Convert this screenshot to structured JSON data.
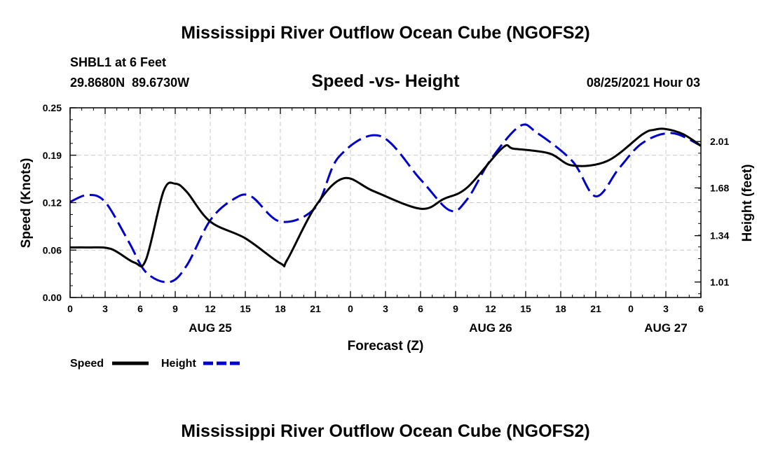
{
  "chart_data": {
    "type": "line",
    "title": "Mississippi River Outflow Ocean Cube (NGOFS2)",
    "footer_title": "Mississippi River Outflow Ocean Cube (NGOFS2)",
    "subtitle": "Speed -vs- Height",
    "station": "SHBL1 at 6 Feet",
    "coords": "29.8680N  89.6730W",
    "datetime": "08/25/2021 Hour 03",
    "xlabel": "Forecast (Z)",
    "ylabel_left": "Speed (Knots)",
    "ylabel_right": "Height (feet)",
    "x_ticks": [
      "0",
      "3",
      "6",
      "9",
      "12",
      "15",
      "18",
      "21",
      "0",
      "3",
      "6",
      "9",
      "12",
      "15",
      "18",
      "21",
      "0",
      "3",
      "6"
    ],
    "date_labels": [
      "AUG 25",
      "AUG 26",
      "AUG 27"
    ],
    "y_left_ticks": [
      "0.00",
      "0.06",
      "0.12",
      "0.19",
      "0.25"
    ],
    "y_left_range": [
      0,
      0.25
    ],
    "y_right_ticks": [
      "1.01",
      "1.34",
      "1.68",
      "2.01"
    ],
    "y_right_range": [
      0.9,
      2.25
    ],
    "x_range_hours": [
      0,
      54
    ],
    "legend": {
      "speed": "Speed",
      "height": "Height"
    },
    "colors": {
      "speed": "#000000",
      "height": "#0000cc",
      "grid": "#c8c8c8"
    },
    "series": [
      {
        "name": "Speed",
        "axis": "left",
        "x": [
          0,
          1.5,
          3.5,
          5.5,
          6.5,
          8,
          9,
          10,
          12,
          15,
          18,
          18.6,
          21,
          23.4,
          26,
          30,
          32,
          34,
          37,
          38,
          41,
          43,
          46,
          49,
          50,
          51,
          52.5,
          54
        ],
        "values": [
          0.066,
          0.066,
          0.064,
          0.046,
          0.05,
          0.14,
          0.15,
          0.139,
          0.1,
          0.078,
          0.045,
          0.05,
          0.12,
          0.157,
          0.14,
          0.117,
          0.13,
          0.145,
          0.197,
          0.196,
          0.19,
          0.174,
          0.18,
          0.215,
          0.221,
          0.222,
          0.215,
          0.2
        ]
      },
      {
        "name": "Height",
        "axis": "right",
        "x": [
          0,
          1.5,
          3,
          5,
          6.5,
          8.5,
          10,
          12,
          14,
          15.5,
          18,
          21,
          23,
          26.5,
          30,
          32.5,
          34,
          36,
          38.5,
          40,
          43,
          45,
          47,
          49,
          51.5,
          54
        ],
        "values": [
          1.58,
          1.63,
          1.58,
          1.3,
          1.08,
          1.01,
          1.13,
          1.45,
          1.6,
          1.62,
          1.44,
          1.54,
          1.9,
          2.05,
          1.74,
          1.52,
          1.6,
          1.88,
          2.12,
          2.07,
          1.87,
          1.62,
          1.82,
          2.0,
          2.07,
          1.98
        ]
      }
    ]
  }
}
